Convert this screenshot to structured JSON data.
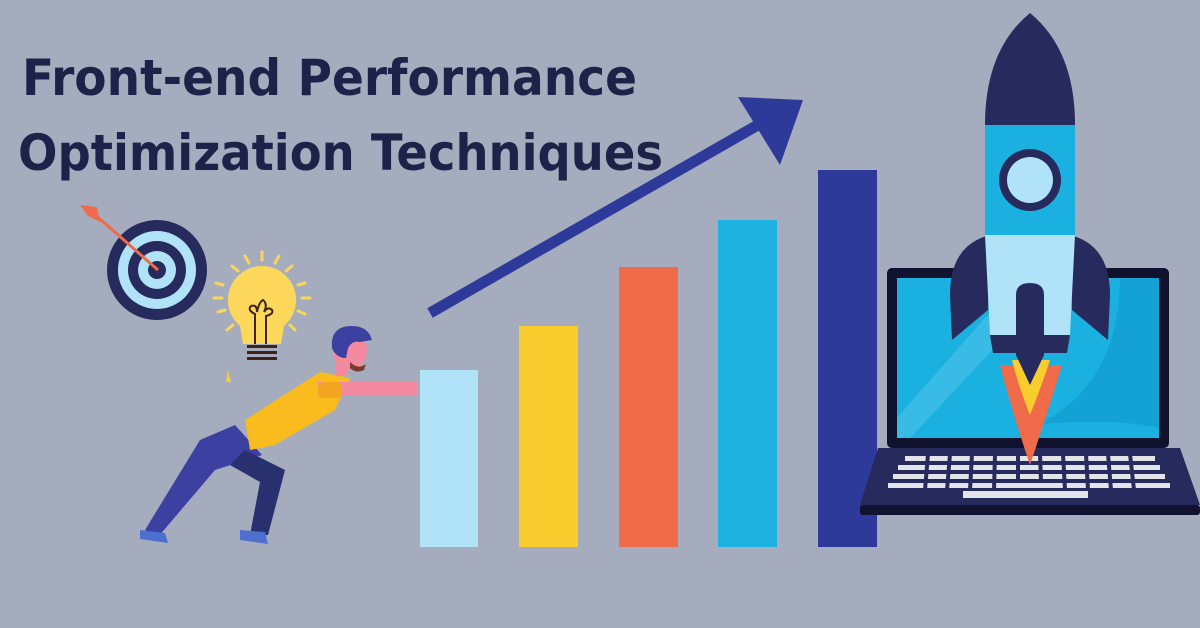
{
  "title": {
    "line1": "Front-end Performance",
    "line2": "Optimization Techniques"
  },
  "colors": {
    "background": "#a4acbe",
    "title": "#1e2248",
    "bar_light_blue": "#b0e3f8",
    "bar_yellow": "#f9cd2e",
    "bar_orange": "#ef6b4a",
    "bar_blue": "#1fb1e0",
    "bar_navy": "#2e3a9a",
    "arrow": "#2e3a9a"
  },
  "icons": [
    "target-icon",
    "lightbulb-icon",
    "person-pushing-illustration",
    "growth-arrow-icon",
    "rocket-icon",
    "laptop-icon"
  ]
}
